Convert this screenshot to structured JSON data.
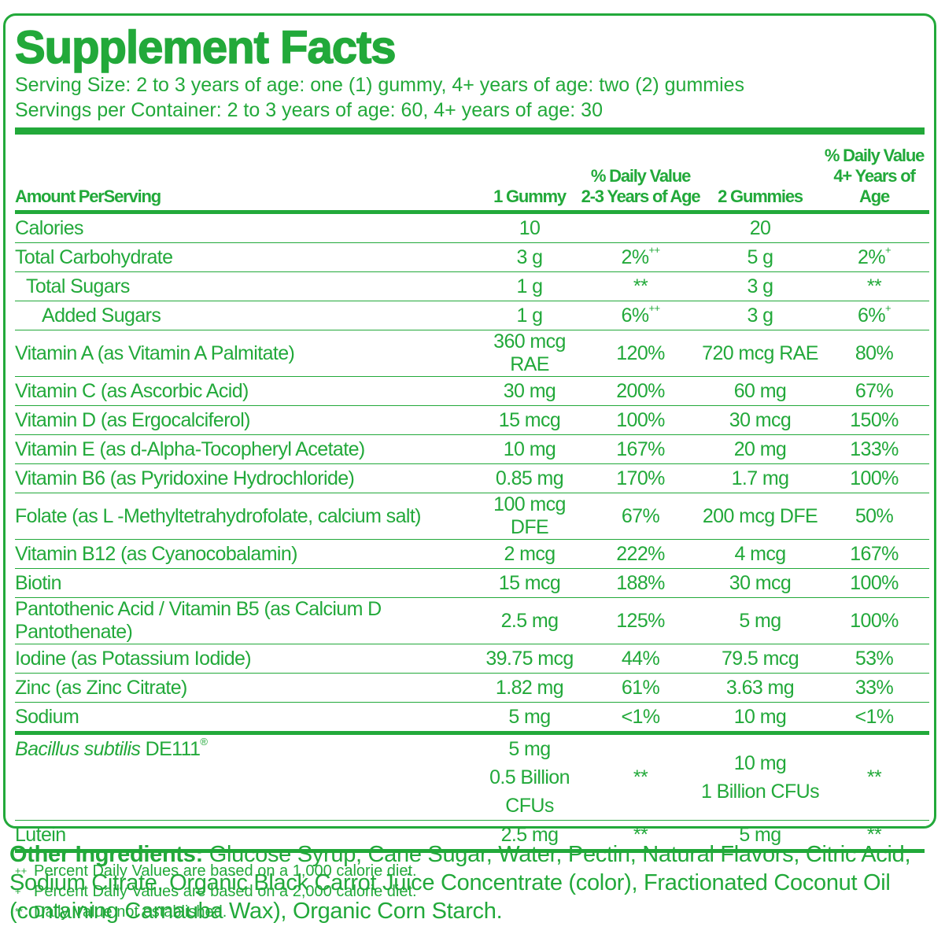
{
  "title": "Supplement Facts",
  "serving_size": "Serving Size: 2 to 3 years of age: one (1) gummy, 4+ years of age: two (2) gummies",
  "servings_per_container": "Servings per Container: 2 to 3 years of age: 60, 4+ years of age: 30",
  "headers": {
    "amount": "Amount PerServing",
    "col1": "1 Gummy",
    "col2_line1": "% Daily Value",
    "col2_line2": "2-3 Years of Age",
    "col3": "2 Gummies",
    "col4_line1": "% Daily Value",
    "col4_line2": "4+ Years of Age"
  },
  "rows": [
    {
      "name": "Calories",
      "g1": "10",
      "dv1": "",
      "g2": "20",
      "dv2": ""
    },
    {
      "name": "Total Carbohydrate",
      "g1": "3 g",
      "dv1": "2%",
      "dv1_sup": "++",
      "g2": "5 g",
      "dv2": "2%",
      "dv2_sup": "+"
    },
    {
      "name": "Total Sugars",
      "g1": "1 g",
      "dv1": "**",
      "g2": "3 g",
      "dv2": "**"
    },
    {
      "name": "Added Sugars",
      "g1": "1 g",
      "dv1": "6%",
      "dv1_sup": "++",
      "g2": "3 g",
      "dv2": "6%",
      "dv2_sup": "+"
    },
    {
      "name": "Vitamin A (as Vitamin A Palmitate)",
      "g1": "360 mcg RAE",
      "dv1": "120%",
      "g2": "720 mcg RAE",
      "dv2": "80%"
    },
    {
      "name": "Vitamin C (as Ascorbic Acid)",
      "g1": "30 mg",
      "dv1": "200%",
      "g2": "60 mg",
      "dv2": "67%"
    },
    {
      "name": "Vitamin D (as Ergocalciferol)",
      "g1": "15 mcg",
      "dv1": "100%",
      "g2": "30 mcg",
      "dv2": "150%"
    },
    {
      "name": "Vitamin E (as d-Alpha-Tocopheryl Acetate)",
      "g1": "10 mg",
      "dv1": "167%",
      "g2": "20 mg",
      "dv2": "133%"
    },
    {
      "name": "Vitamin B6 (as Pyridoxine Hydrochloride)",
      "g1": "0.85 mg",
      "dv1": "170%",
      "g2": "1.7 mg",
      "dv2": "100%"
    },
    {
      "name": "Folate (as L -Methyltetrahydrofolate, calcium salt)",
      "g1": "100 mcg DFE",
      "dv1": "67%",
      "g2": "200 mcg DFE",
      "dv2": "50%"
    },
    {
      "name": "Vitamin B12 (as Cyanocobalamin)",
      "g1": "2 mcg",
      "dv1": "222%",
      "g2": "4 mcg",
      "dv2": "167%"
    },
    {
      "name": "Biotin",
      "g1": "15 mcg",
      "dv1": "188%",
      "g2": "30 mcg",
      "dv2": "100%"
    },
    {
      "name": "Pantothenic Acid / Vitamin B5 (as Calcium D Pantothenate)",
      "g1": "2.5 mg",
      "dv1": "125%",
      "g2": "5 mg",
      "dv2": "100%"
    },
    {
      "name": "Iodine (as Potassium Iodide)",
      "g1": "39.75 mcg",
      "dv1": "44%",
      "g2": "79.5 mcg",
      "dv2": "53%"
    },
    {
      "name": "Zinc (as Zinc Citrate)",
      "g1": "1.82 mg",
      "dv1": "61%",
      "g2": "3.63 mg",
      "dv2": "33%"
    },
    {
      "name": "Sodium",
      "g1": "5 mg",
      "dv1": "<1%",
      "g2": "10 mg",
      "dv2": "<1%"
    }
  ],
  "bacillus": {
    "name_italic": "Bacillus subtilis",
    "name_rest": " DE111",
    "reg": "®",
    "g1_line1": "5 mg",
    "g1_line2": "0.5 Billion CFUs",
    "dv1": "**",
    "g2_line1": "10 mg",
    "g2_line2": "1 Billion CFUs",
    "dv2": "**"
  },
  "lutein": {
    "name": "Lutein",
    "g1": "2.5 mg",
    "dv1": "**",
    "g2": "5 mg",
    "dv2": "**"
  },
  "footnotes": [
    {
      "mark": "++",
      "text": "Percent Daily Values are based on a 1,000 calorie diet."
    },
    {
      "mark": "+",
      "text": "Percent Daily Values are based on a 2,000 calorie diet."
    },
    {
      "mark": "**",
      "text": "Daily Value not established."
    }
  ],
  "other_ingredients": {
    "label": "Other Ingredients:",
    "text": " Glucose Syrup, Cane Sugar, Water, Pectin, Natural Flavors, Citric Acid, Sodium Citrate, Organic Black Carrot Juice Concentrate (color), Fractionated Coconut Oil (containing Carnauba Wax), Organic Corn Starch."
  },
  "colors": {
    "brand_green": "#22a93a"
  }
}
